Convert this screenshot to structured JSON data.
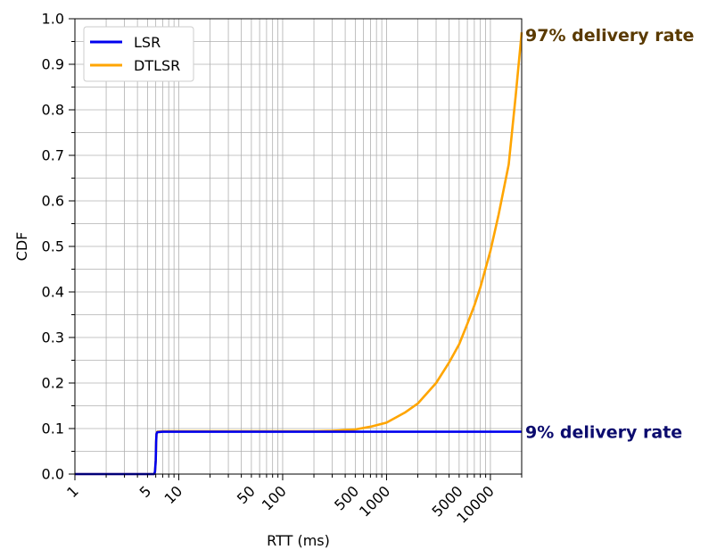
{
  "chart_data": {
    "type": "line",
    "title": "",
    "xlabel": "RTT (ms)",
    "ylabel": "CDF",
    "xscale": "log",
    "xlim": [
      1,
      20000
    ],
    "ylim": [
      0.0,
      1.0
    ],
    "grid": "on (major and minor, both axes)",
    "legend_position": "top-left",
    "xtick_labels": [
      "1",
      "5",
      "10",
      "50",
      "100",
      "500",
      "1000",
      "5000",
      "10000"
    ],
    "xticks": [
      1,
      5,
      10,
      50,
      100,
      500,
      1000,
      5000,
      10000
    ],
    "ytick_labels": [
      "0.0",
      "0.1",
      "0.2",
      "0.3",
      "0.4",
      "0.5",
      "0.6",
      "0.7",
      "0.8",
      "0.9",
      "1.0"
    ],
    "yticks": [
      0.0,
      0.1,
      0.2,
      0.3,
      0.4,
      0.5,
      0.6,
      0.7,
      0.8,
      0.9,
      1.0
    ],
    "series": [
      {
        "name": "LSR",
        "color": "#0000ee",
        "x": [
          1,
          5.0,
          5.8,
          5.9,
          6.0,
          6.05,
          6.1,
          6.2,
          7,
          8,
          10,
          50,
          100,
          500,
          1000,
          5000,
          10000,
          20000
        ],
        "y": [
          0.0,
          0.0,
          0.0,
          0.005,
          0.03,
          0.07,
          0.088,
          0.092,
          0.093,
          0.093,
          0.093,
          0.093,
          0.093,
          0.093,
          0.093,
          0.093,
          0.093,
          0.093
        ]
      },
      {
        "name": "DTLSR",
        "color": "#ffa500",
        "x": [
          1,
          5.0,
          5.8,
          5.9,
          6.0,
          6.05,
          6.1,
          6.2,
          7,
          10,
          50,
          100,
          200,
          300,
          500,
          700,
          1000,
          1500,
          2000,
          3000,
          4000,
          5000,
          6000,
          7000,
          8000,
          10000,
          12000,
          15000,
          17500,
          20000
        ],
        "y": [
          0.0,
          0.0,
          0.0,
          0.005,
          0.03,
          0.07,
          0.088,
          0.093,
          0.094,
          0.094,
          0.094,
          0.094,
          0.094,
          0.095,
          0.098,
          0.104,
          0.113,
          0.135,
          0.155,
          0.2,
          0.245,
          0.285,
          0.33,
          0.37,
          0.41,
          0.49,
          0.57,
          0.68,
          0.83,
          0.97
        ]
      }
    ],
    "annotations": [
      {
        "text": "97% delivery rate",
        "color": "#5a3a00",
        "at_y": 0.965
      },
      {
        "text": "9% delivery rate",
        "color": "#0b0b6e",
        "at_y": 0.093
      }
    ]
  }
}
